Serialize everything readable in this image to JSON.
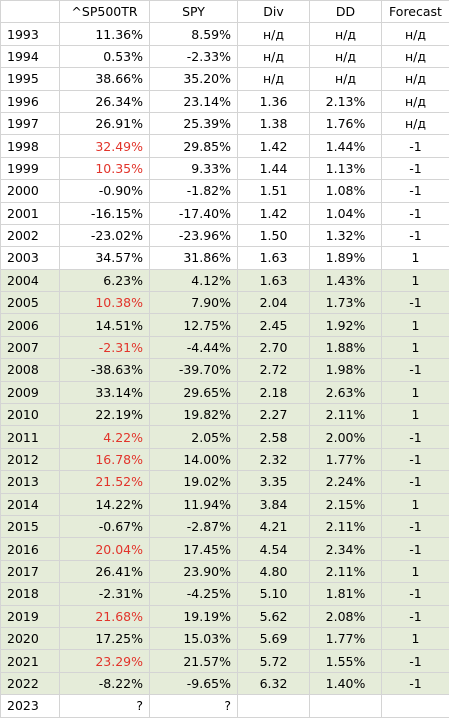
{
  "headers": [
    "",
    "^SP500TR",
    "SPY",
    "Div",
    "DD",
    "Forecast"
  ],
  "colors": {
    "highlight_text": "#e2342b",
    "shaded_row": "#e5ecd9",
    "grid": "#d4d4d4"
  },
  "rows": [
    {
      "year": "1993",
      "sp500tr": "11.36%",
      "spy": "8.59%",
      "div": "н/д",
      "dd": "н/д",
      "forecast": "н/д",
      "red": false,
      "shaded": false
    },
    {
      "year": "1994",
      "sp500tr": "0.53%",
      "spy": "-2.33%",
      "div": "н/д",
      "dd": "н/д",
      "forecast": "н/д",
      "red": false,
      "shaded": false
    },
    {
      "year": "1995",
      "sp500tr": "38.66%",
      "spy": "35.20%",
      "div": "н/д",
      "dd": "н/д",
      "forecast": "н/д",
      "red": false,
      "shaded": false
    },
    {
      "year": "1996",
      "sp500tr": "26.34%",
      "spy": "23.14%",
      "div": "1.36",
      "dd": "2.13%",
      "forecast": "н/д",
      "red": false,
      "shaded": false
    },
    {
      "year": "1997",
      "sp500tr": "26.91%",
      "spy": "25.39%",
      "div": "1.38",
      "dd": "1.76%",
      "forecast": "н/д",
      "red": false,
      "shaded": false
    },
    {
      "year": "1998",
      "sp500tr": "32.49%",
      "spy": "29.85%",
      "div": "1.42",
      "dd": "1.44%",
      "forecast": "-1",
      "red": true,
      "shaded": false
    },
    {
      "year": "1999",
      "sp500tr": "10.35%",
      "spy": "9.33%",
      "div": "1.44",
      "dd": "1.13%",
      "forecast": "-1",
      "red": true,
      "shaded": false
    },
    {
      "year": "2000",
      "sp500tr": "-0.90%",
      "spy": "-1.82%",
      "div": "1.51",
      "dd": "1.08%",
      "forecast": "-1",
      "red": false,
      "shaded": false
    },
    {
      "year": "2001",
      "sp500tr": "-16.15%",
      "spy": "-17.40%",
      "div": "1.42",
      "dd": "1.04%",
      "forecast": "-1",
      "red": false,
      "shaded": false
    },
    {
      "year": "2002",
      "sp500tr": "-23.02%",
      "spy": "-23.96%",
      "div": "1.50",
      "dd": "1.32%",
      "forecast": "-1",
      "red": false,
      "shaded": false
    },
    {
      "year": "2003",
      "sp500tr": "34.57%",
      "spy": "31.86%",
      "div": "1.63",
      "dd": "1.89%",
      "forecast": "1",
      "red": false,
      "shaded": false
    },
    {
      "year": "2004",
      "sp500tr": "6.23%",
      "spy": "4.12%",
      "div": "1.63",
      "dd": "1.43%",
      "forecast": "1",
      "red": false,
      "shaded": true
    },
    {
      "year": "2005",
      "sp500tr": "10.38%",
      "spy": "7.90%",
      "div": "2.04",
      "dd": "1.73%",
      "forecast": "-1",
      "red": true,
      "shaded": true
    },
    {
      "year": "2006",
      "sp500tr": "14.51%",
      "spy": "12.75%",
      "div": "2.45",
      "dd": "1.92%",
      "forecast": "1",
      "red": false,
      "shaded": true
    },
    {
      "year": "2007",
      "sp500tr": "-2.31%",
      "spy": "-4.44%",
      "div": "2.70",
      "dd": "1.88%",
      "forecast": "1",
      "red": true,
      "shaded": true
    },
    {
      "year": "2008",
      "sp500tr": "-38.63%",
      "spy": "-39.70%",
      "div": "2.72",
      "dd": "1.98%",
      "forecast": "-1",
      "red": false,
      "shaded": true
    },
    {
      "year": "2009",
      "sp500tr": "33.14%",
      "spy": "29.65%",
      "div": "2.18",
      "dd": "2.63%",
      "forecast": "1",
      "red": false,
      "shaded": true
    },
    {
      "year": "2010",
      "sp500tr": "22.19%",
      "spy": "19.82%",
      "div": "2.27",
      "dd": "2.11%",
      "forecast": "1",
      "red": false,
      "shaded": true
    },
    {
      "year": "2011",
      "sp500tr": "4.22%",
      "spy": "2.05%",
      "div": "2.58",
      "dd": "2.00%",
      "forecast": "-1",
      "red": true,
      "shaded": true
    },
    {
      "year": "2012",
      "sp500tr": "16.78%",
      "spy": "14.00%",
      "div": "2.32",
      "dd": "1.77%",
      "forecast": "-1",
      "red": true,
      "shaded": true
    },
    {
      "year": "2013",
      "sp500tr": "21.52%",
      "spy": "19.02%",
      "div": "3.35",
      "dd": "2.24%",
      "forecast": "-1",
      "red": true,
      "shaded": true
    },
    {
      "year": "2014",
      "sp500tr": "14.22%",
      "spy": "11.94%",
      "div": "3.84",
      "dd": "2.15%",
      "forecast": "1",
      "red": false,
      "shaded": true
    },
    {
      "year": "2015",
      "sp500tr": "-0.67%",
      "spy": "-2.87%",
      "div": "4.21",
      "dd": "2.11%",
      "forecast": "-1",
      "red": false,
      "shaded": true
    },
    {
      "year": "2016",
      "sp500tr": "20.04%",
      "spy": "17.45%",
      "div": "4.54",
      "dd": "2.34%",
      "forecast": "-1",
      "red": true,
      "shaded": true
    },
    {
      "year": "2017",
      "sp500tr": "26.41%",
      "spy": "23.90%",
      "div": "4.80",
      "dd": "2.11%",
      "forecast": "1",
      "red": false,
      "shaded": true
    },
    {
      "year": "2018",
      "sp500tr": "-2.31%",
      "spy": "-4.25%",
      "div": "5.10",
      "dd": "1.81%",
      "forecast": "-1",
      "red": false,
      "shaded": true
    },
    {
      "year": "2019",
      "sp500tr": "21.68%",
      "spy": "19.19%",
      "div": "5.62",
      "dd": "2.08%",
      "forecast": "-1",
      "red": true,
      "shaded": true
    },
    {
      "year": "2020",
      "sp500tr": "17.25%",
      "spy": "15.03%",
      "div": "5.69",
      "dd": "1.77%",
      "forecast": "1",
      "red": false,
      "shaded": true
    },
    {
      "year": "2021",
      "sp500tr": "23.29%",
      "spy": "21.57%",
      "div": "5.72",
      "dd": "1.55%",
      "forecast": "-1",
      "red": true,
      "shaded": true
    },
    {
      "year": "2022",
      "sp500tr": "-8.22%",
      "spy": "-9.65%",
      "div": "6.32",
      "dd": "1.40%",
      "forecast": "-1",
      "red": false,
      "shaded": true
    },
    {
      "year": "2023",
      "sp500tr": "?",
      "spy": "?",
      "div": "",
      "dd": "",
      "forecast": "",
      "red": false,
      "shaded": false
    }
  ]
}
